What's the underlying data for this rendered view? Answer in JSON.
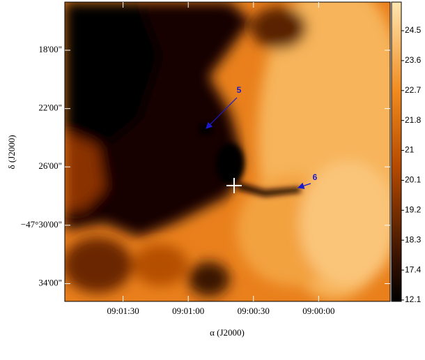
{
  "chart_data": {
    "type": "image",
    "xlabel": "α (J2000)",
    "ylabel": "δ (J2000)",
    "xlim": [
      32516.8,
      32367.1
    ],
    "xticks": [
      {
        "value": 32490,
        "label": "09:01:30"
      },
      {
        "value": 32460,
        "label": "09:01:00"
      },
      {
        "value": 32430,
        "label": "09:00:30"
      },
      {
        "value": 32400,
        "label": "09:00:00"
      }
    ],
    "ylim": [
      -47.587,
      -47.245
    ],
    "yticks": [
      {
        "value": -47.3,
        "label": "18'00\""
      },
      {
        "value": -47.3667,
        "label": "22'00\""
      },
      {
        "value": -47.4333,
        "label": "26'00\""
      },
      {
        "value": -47.5,
        "label": "−47°30'00\""
      },
      {
        "value": -47.5667,
        "label": "34'00\""
      }
    ],
    "colorbar_ticks": [
      12.1,
      17.4,
      18.3,
      19.2,
      20.1,
      21.0,
      21.8,
      22.7,
      23.6,
      24.5
    ],
    "annotations": [
      {
        "text": "5"
      },
      {
        "text": "6"
      }
    ]
  }
}
